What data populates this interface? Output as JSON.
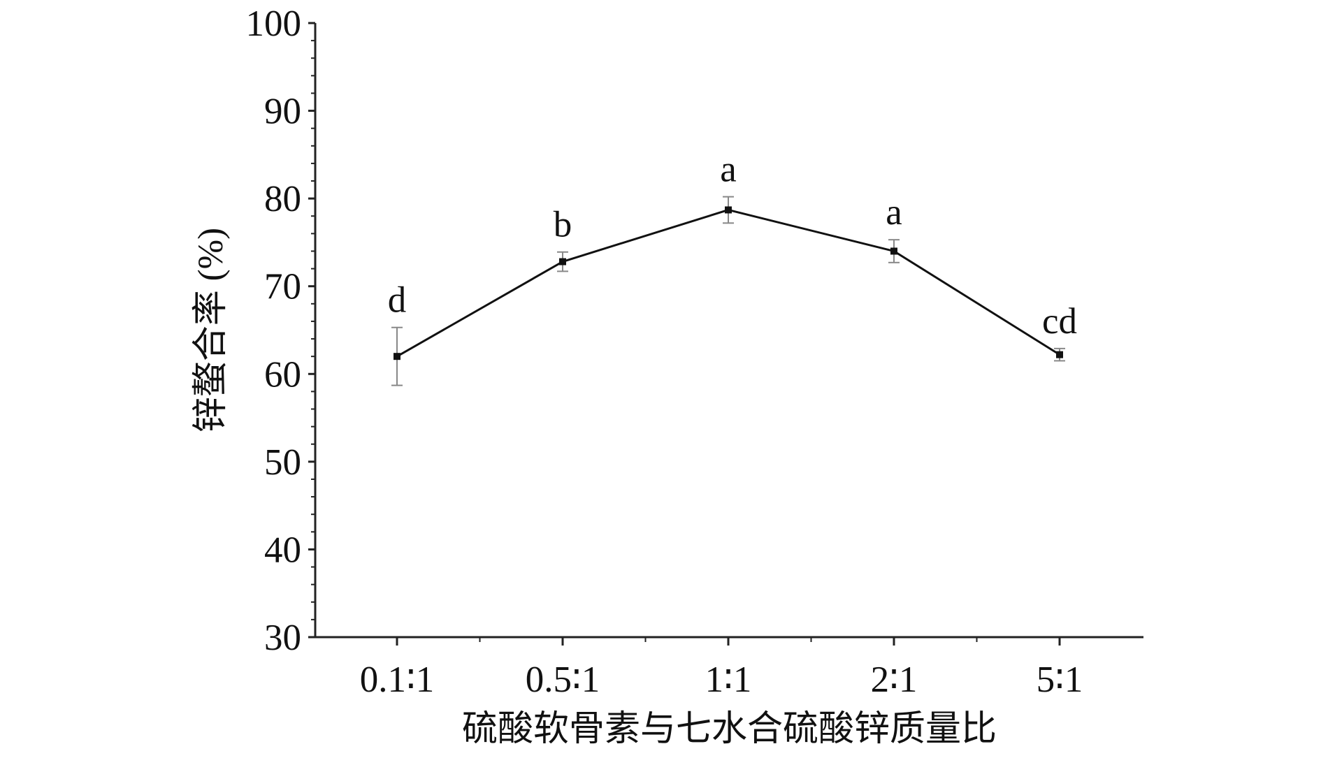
{
  "chart_data": {
    "type": "line",
    "categories": [
      "0.1∶1",
      "0.5∶1",
      "1∶1",
      "2∶1",
      "5∶1"
    ],
    "series": [
      {
        "values": [
          62.0,
          72.8,
          78.7,
          74.0,
          62.2
        ],
        "error": [
          3.3,
          1.1,
          1.5,
          1.3,
          0.7
        ],
        "labels": [
          "d",
          "b",
          "a",
          "a",
          "cd"
        ]
      }
    ],
    "xlabel": "硫酸软骨素与七水合硫酸锌质量比",
    "ylabel": "锌螯合率 (%)",
    "ylim": [
      30,
      100
    ],
    "yticks": [
      30,
      40,
      50,
      60,
      70,
      80,
      90,
      100
    ],
    "grid": false,
    "legend": "none",
    "colors": {
      "line": "#111111",
      "axis": "#222222",
      "error_bar": "#888888"
    }
  }
}
